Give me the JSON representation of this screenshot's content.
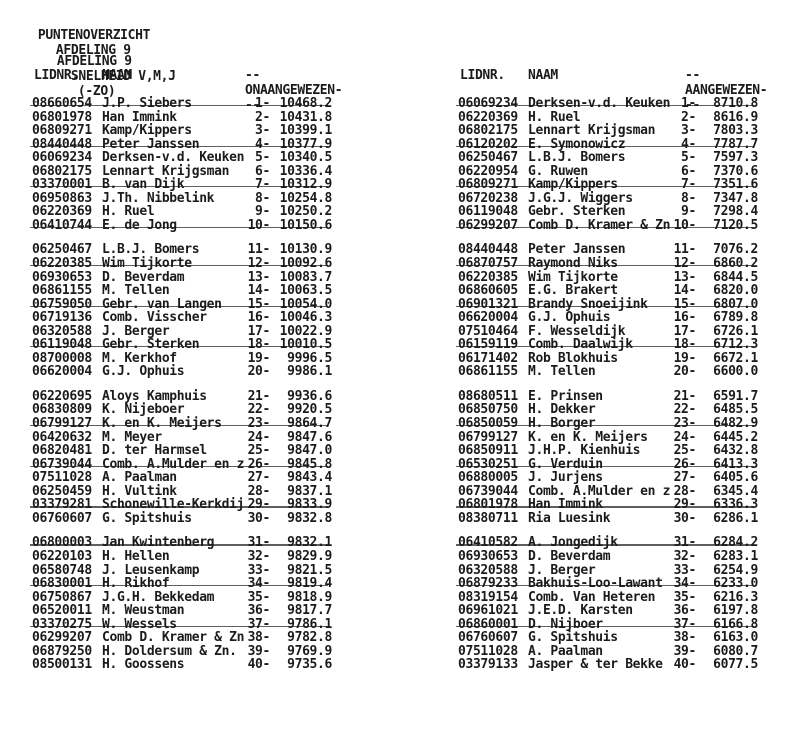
{
  "colors": {
    "ink": "#1b1b1b",
    "paper": "#ffffff"
  },
  "header": {
    "title": "PUNTENOVERZICHT",
    "title_section": "AFDELING 9",
    "subtitle_section": "AFDELING 9",
    "subtitle_event": "SNELHEID V,M,J",
    "subtitle_zone": "(-ZO)"
  },
  "tables": [
    {
      "name": "onaangewezen",
      "columns": {
        "lidnr": "LIDNR.",
        "naam": "NAAM",
        "score": "--ONAANGEWEZEN---"
      },
      "groups": [
        [
          {
            "lidnr": "08660654",
            "naam": "J.P. Siebers",
            "rank": "1-",
            "value": "10468.2",
            "struck": true
          },
          {
            "lidnr": "06801978",
            "naam": "Han Immink",
            "rank": "2-",
            "value": "10431.8",
            "struck": false
          },
          {
            "lidnr": "06809271",
            "naam": "Kamp/Kippers",
            "rank": "3-",
            "value": "10399.1",
            "struck": false
          },
          {
            "lidnr": "08440448",
            "naam": "Peter Janssen",
            "rank": "4-",
            "value": "10377.9",
            "struck": true
          },
          {
            "lidnr": "06069234",
            "naam": "Derksen-v.d. Keuken",
            "rank": "5-",
            "value": "10340.5",
            "struck": false
          },
          {
            "lidnr": "06802175",
            "naam": "Lennart Krijgsman",
            "rank": "6-",
            "value": "10336.4",
            "struck": false
          },
          {
            "lidnr": "03370001",
            "naam": "B. van Dijk",
            "rank": "7-",
            "value": "10312.9",
            "struck": true
          },
          {
            "lidnr": "06950863",
            "naam": "J.Th. Nibbelink",
            "rank": "8-",
            "value": "10254.8",
            "struck": false
          },
          {
            "lidnr": "06220369",
            "naam": "H. Ruel",
            "rank": "9-",
            "value": "10250.2",
            "struck": false
          },
          {
            "lidnr": "06410744",
            "naam": "E. de Jong",
            "rank": "10-",
            "value": "10150.6",
            "struck": true
          }
        ],
        [
          {
            "lidnr": "06250467",
            "naam": "L.B.J. Bomers",
            "rank": "11-",
            "value": "10130.9",
            "struck": false
          },
          {
            "lidnr": "06220385",
            "naam": "Wim Tijkorte",
            "rank": "12-",
            "value": "10092.6",
            "struck": true
          },
          {
            "lidnr": "06930653",
            "naam": "D. Beverdam",
            "rank": "13-",
            "value": "10083.7",
            "struck": false
          },
          {
            "lidnr": "06861155",
            "naam": "M. Tellen",
            "rank": "14-",
            "value": "10063.5",
            "struck": false
          },
          {
            "lidnr": "06759050",
            "naam": "Gebr. van Langen",
            "rank": "15-",
            "value": "10054.0",
            "struck": true
          },
          {
            "lidnr": "06719136",
            "naam": "Comb. Visscher",
            "rank": "16-",
            "value": "10046.3",
            "struck": false
          },
          {
            "lidnr": "06320588",
            "naam": "J. Berger",
            "rank": "17-",
            "value": "10022.9",
            "struck": false
          },
          {
            "lidnr": "06119048",
            "naam": "Gebr. Sterken",
            "rank": "18-",
            "value": "10010.5",
            "struck": true
          },
          {
            "lidnr": "08700008",
            "naam": "M. Kerkhof",
            "rank": "19-",
            "value": "9996.5",
            "struck": false
          },
          {
            "lidnr": "06620004",
            "naam": "G.J. Ophuis",
            "rank": "20-",
            "value": "9986.1",
            "struck": false
          }
        ],
        [
          {
            "lidnr": "06220695",
            "naam": "Aloys Kamphuis",
            "rank": "21-",
            "value": "9936.6",
            "struck": false
          },
          {
            "lidnr": "06830809",
            "naam": "K. Nijeboer",
            "rank": "22-",
            "value": "9920.5",
            "struck": false
          },
          {
            "lidnr": "06799127",
            "naam": "K. en K. Meijers",
            "rank": "23-",
            "value": "9864.7",
            "struck": true
          },
          {
            "lidnr": "06420632",
            "naam": "M. Meyer",
            "rank": "24-",
            "value": "9847.6",
            "struck": false
          },
          {
            "lidnr": "06820481",
            "naam": "D. ter Harmsel",
            "rank": "25-",
            "value": "9847.0",
            "struck": false
          },
          {
            "lidnr": "06739044",
            "naam": "Comb. A.Mulder en z",
            "rank": "26-",
            "value": "9845.8",
            "struck": true
          },
          {
            "lidnr": "07511028",
            "naam": "A. Paalman",
            "rank": "27-",
            "value": "9843.4",
            "struck": false
          },
          {
            "lidnr": "06250459",
            "naam": "H. Vultink",
            "rank": "28-",
            "value": "9837.1",
            "struck": false
          },
          {
            "lidnr": "03379281",
            "naam": "Schonewille-Kerkdij",
            "rank": "29-",
            "value": "9833.9",
            "struck": true
          },
          {
            "lidnr": "06760607",
            "naam": "G. Spitshuis",
            "rank": "30-",
            "value": "9832.8",
            "struck": false
          }
        ],
        [
          {
            "lidnr": "06800003",
            "naam": "Jan Kwintenberg",
            "rank": "31-",
            "value": "9832.1",
            "struck": true
          },
          {
            "lidnr": "06220103",
            "naam": "H. Hellen",
            "rank": "32-",
            "value": "9829.9",
            "struck": false
          },
          {
            "lidnr": "06580748",
            "naam": "J. Leusenkamp",
            "rank": "33-",
            "value": "9821.5",
            "struck": false
          },
          {
            "lidnr": "06830001",
            "naam": "H. Rikhof",
            "rank": "34-",
            "value": "9819.4",
            "struck": true
          },
          {
            "lidnr": "06750867",
            "naam": "J.G.H. Bekkedam",
            "rank": "35-",
            "value": "9818.9",
            "struck": false
          },
          {
            "lidnr": "06520011",
            "naam": "M. Weustman",
            "rank": "36-",
            "value": "9817.7",
            "struck": false
          },
          {
            "lidnr": "03370275",
            "naam": "W. Wessels",
            "rank": "37-",
            "value": "9786.1",
            "struck": true
          },
          {
            "lidnr": "06299207",
            "naam": "Comb D. Kramer & Zn",
            "rank": "38-",
            "value": "9782.8",
            "struck": false
          },
          {
            "lidnr": "06879250",
            "naam": "H. Doldersum & Zn.",
            "rank": "39-",
            "value": "9769.9",
            "struck": false
          },
          {
            "lidnr": "08500131",
            "naam": "H. Goossens",
            "rank": "40-",
            "value": "9735.6",
            "struck": false
          }
        ]
      ]
    },
    {
      "name": "aangewezen",
      "columns": {
        "lidnr": "LIDNR.",
        "naam": "NAAM",
        "score": "--AANGEWEZEN---"
      },
      "groups": [
        [
          {
            "lidnr": "06069234",
            "naam": "Derksen-v.d. Keuken",
            "rank": "1-",
            "value": "8710.8",
            "struck": true
          },
          {
            "lidnr": "06220369",
            "naam": "H. Ruel",
            "rank": "2-",
            "value": "8616.9",
            "struck": false
          },
          {
            "lidnr": "06802175",
            "naam": "Lennart Krijgsman",
            "rank": "3-",
            "value": "7803.3",
            "struck": false
          },
          {
            "lidnr": "06120202",
            "naam": "E. Symonowicz",
            "rank": "4-",
            "value": "7787.7",
            "struck": true
          },
          {
            "lidnr": "06250467",
            "naam": "L.B.J. Bomers",
            "rank": "5-",
            "value": "7597.3",
            "struck": false
          },
          {
            "lidnr": "06220954",
            "naam": "G. Ruwen",
            "rank": "6-",
            "value": "7370.6",
            "struck": false
          },
          {
            "lidnr": "06809271",
            "naam": "Kamp/Kippers",
            "rank": "7-",
            "value": "7351.6",
            "struck": true
          },
          {
            "lidnr": "06720238",
            "naam": "J.G.J. Wiggers",
            "rank": "8-",
            "value": "7347.8",
            "struck": false
          },
          {
            "lidnr": "06119048",
            "naam": "Gebr. Sterken",
            "rank": "9-",
            "value": "7298.4",
            "struck": false
          },
          {
            "lidnr": "06299207",
            "naam": "Comb D. Kramer & Zn",
            "rank": "10-",
            "value": "7120.5",
            "struck": true
          }
        ],
        [
          {
            "lidnr": "08440448",
            "naam": "Peter Janssen",
            "rank": "11-",
            "value": "7076.2",
            "struck": false
          },
          {
            "lidnr": "06870757",
            "naam": "Raymond Niks",
            "rank": "12-",
            "value": "6860.2",
            "struck": true
          },
          {
            "lidnr": "06220385",
            "naam": "Wim Tijkorte",
            "rank": "13-",
            "value": "6844.5",
            "struck": false
          },
          {
            "lidnr": "06860605",
            "naam": "E.G. Brakert",
            "rank": "14-",
            "value": "6820.0",
            "struck": false
          },
          {
            "lidnr": "06901321",
            "naam": "Brandy Snoeijink",
            "rank": "15-",
            "value": "6807.0",
            "struck": true
          },
          {
            "lidnr": "06620004",
            "naam": "G.J. Ophuis",
            "rank": "16-",
            "value": "6789.8",
            "struck": false
          },
          {
            "lidnr": "07510464",
            "naam": "F. Wesseldijk",
            "rank": "17-",
            "value": "6726.1",
            "struck": false
          },
          {
            "lidnr": "06159119",
            "naam": "Comb. Daalwijk",
            "rank": "18-",
            "value": "6712.3",
            "struck": true
          },
          {
            "lidnr": "06171402",
            "naam": "Rob Blokhuis",
            "rank": "19-",
            "value": "6672.1",
            "struck": false
          },
          {
            "lidnr": "06861155",
            "naam": "M. Tellen",
            "rank": "20-",
            "value": "6600.0",
            "struck": false
          }
        ],
        [
          {
            "lidnr": "08680511",
            "naam": "E. Prinsen",
            "rank": "21-",
            "value": "6591.7",
            "struck": false
          },
          {
            "lidnr": "06850750",
            "naam": "H. Dekker",
            "rank": "22-",
            "value": "6485.5",
            "struck": false
          },
          {
            "lidnr": "06850059",
            "naam": "H. Borger",
            "rank": "23-",
            "value": "6482.9",
            "struck": true
          },
          {
            "lidnr": "06799127",
            "naam": "K. en K. Meijers",
            "rank": "24-",
            "value": "6445.2",
            "struck": false
          },
          {
            "lidnr": "06850911",
            "naam": "J.H.P. Kienhuis",
            "rank": "25-",
            "value": "6432.8",
            "struck": false
          },
          {
            "lidnr": "06530251",
            "naam": "G. Verduin",
            "rank": "26-",
            "value": "6413.3",
            "struck": true
          },
          {
            "lidnr": "06880005",
            "naam": "J. Jurjens",
            "rank": "27-",
            "value": "6405.6",
            "struck": false
          },
          {
            "lidnr": "06739044",
            "naam": "Comb. A.Mulder en z",
            "rank": "28-",
            "value": "6345.4",
            "struck": false
          },
          {
            "lidnr": "06801978",
            "naam": "Han Immink",
            "rank": "29-",
            "value": "6336.3",
            "struck": true
          },
          {
            "lidnr": "08380711",
            "naam": "Ria Luesink",
            "rank": "30-",
            "value": "6286.1",
            "struck": false
          }
        ],
        [
          {
            "lidnr": "06410582",
            "naam": "A. Jongedijk",
            "rank": "31-",
            "value": "6284.2",
            "struck": true
          },
          {
            "lidnr": "06930653",
            "naam": "D. Beverdam",
            "rank": "32-",
            "value": "6283.1",
            "struck": false
          },
          {
            "lidnr": "06320588",
            "naam": "J. Berger",
            "rank": "33-",
            "value": "6254.9",
            "struck": false
          },
          {
            "lidnr": "06879233",
            "naam": "Bakhuis-Loo-Lawant",
            "rank": "34-",
            "value": "6233.0",
            "struck": true
          },
          {
            "lidnr": "08319154",
            "naam": "Comb. Van Heteren",
            "rank": "35-",
            "value": "6216.3",
            "struck": false
          },
          {
            "lidnr": "06961021",
            "naam": "J.E.D. Karsten",
            "rank": "36-",
            "value": "6197.8",
            "struck": false
          },
          {
            "lidnr": "06860001",
            "naam": "D. Nijboer",
            "rank": "37-",
            "value": "6166.8",
            "struck": true
          },
          {
            "lidnr": "06760607",
            "naam": "G. Spitshuis",
            "rank": "38-",
            "value": "6163.0",
            "struck": false
          },
          {
            "lidnr": "07511028",
            "naam": "A. Paalman",
            "rank": "39-",
            "value": "6080.7",
            "struck": false
          },
          {
            "lidnr": "03379133",
            "naam": "Jasper & ter Bekke",
            "rank": "40-",
            "value": "6077.5",
            "struck": false
          }
        ]
      ]
    }
  ]
}
